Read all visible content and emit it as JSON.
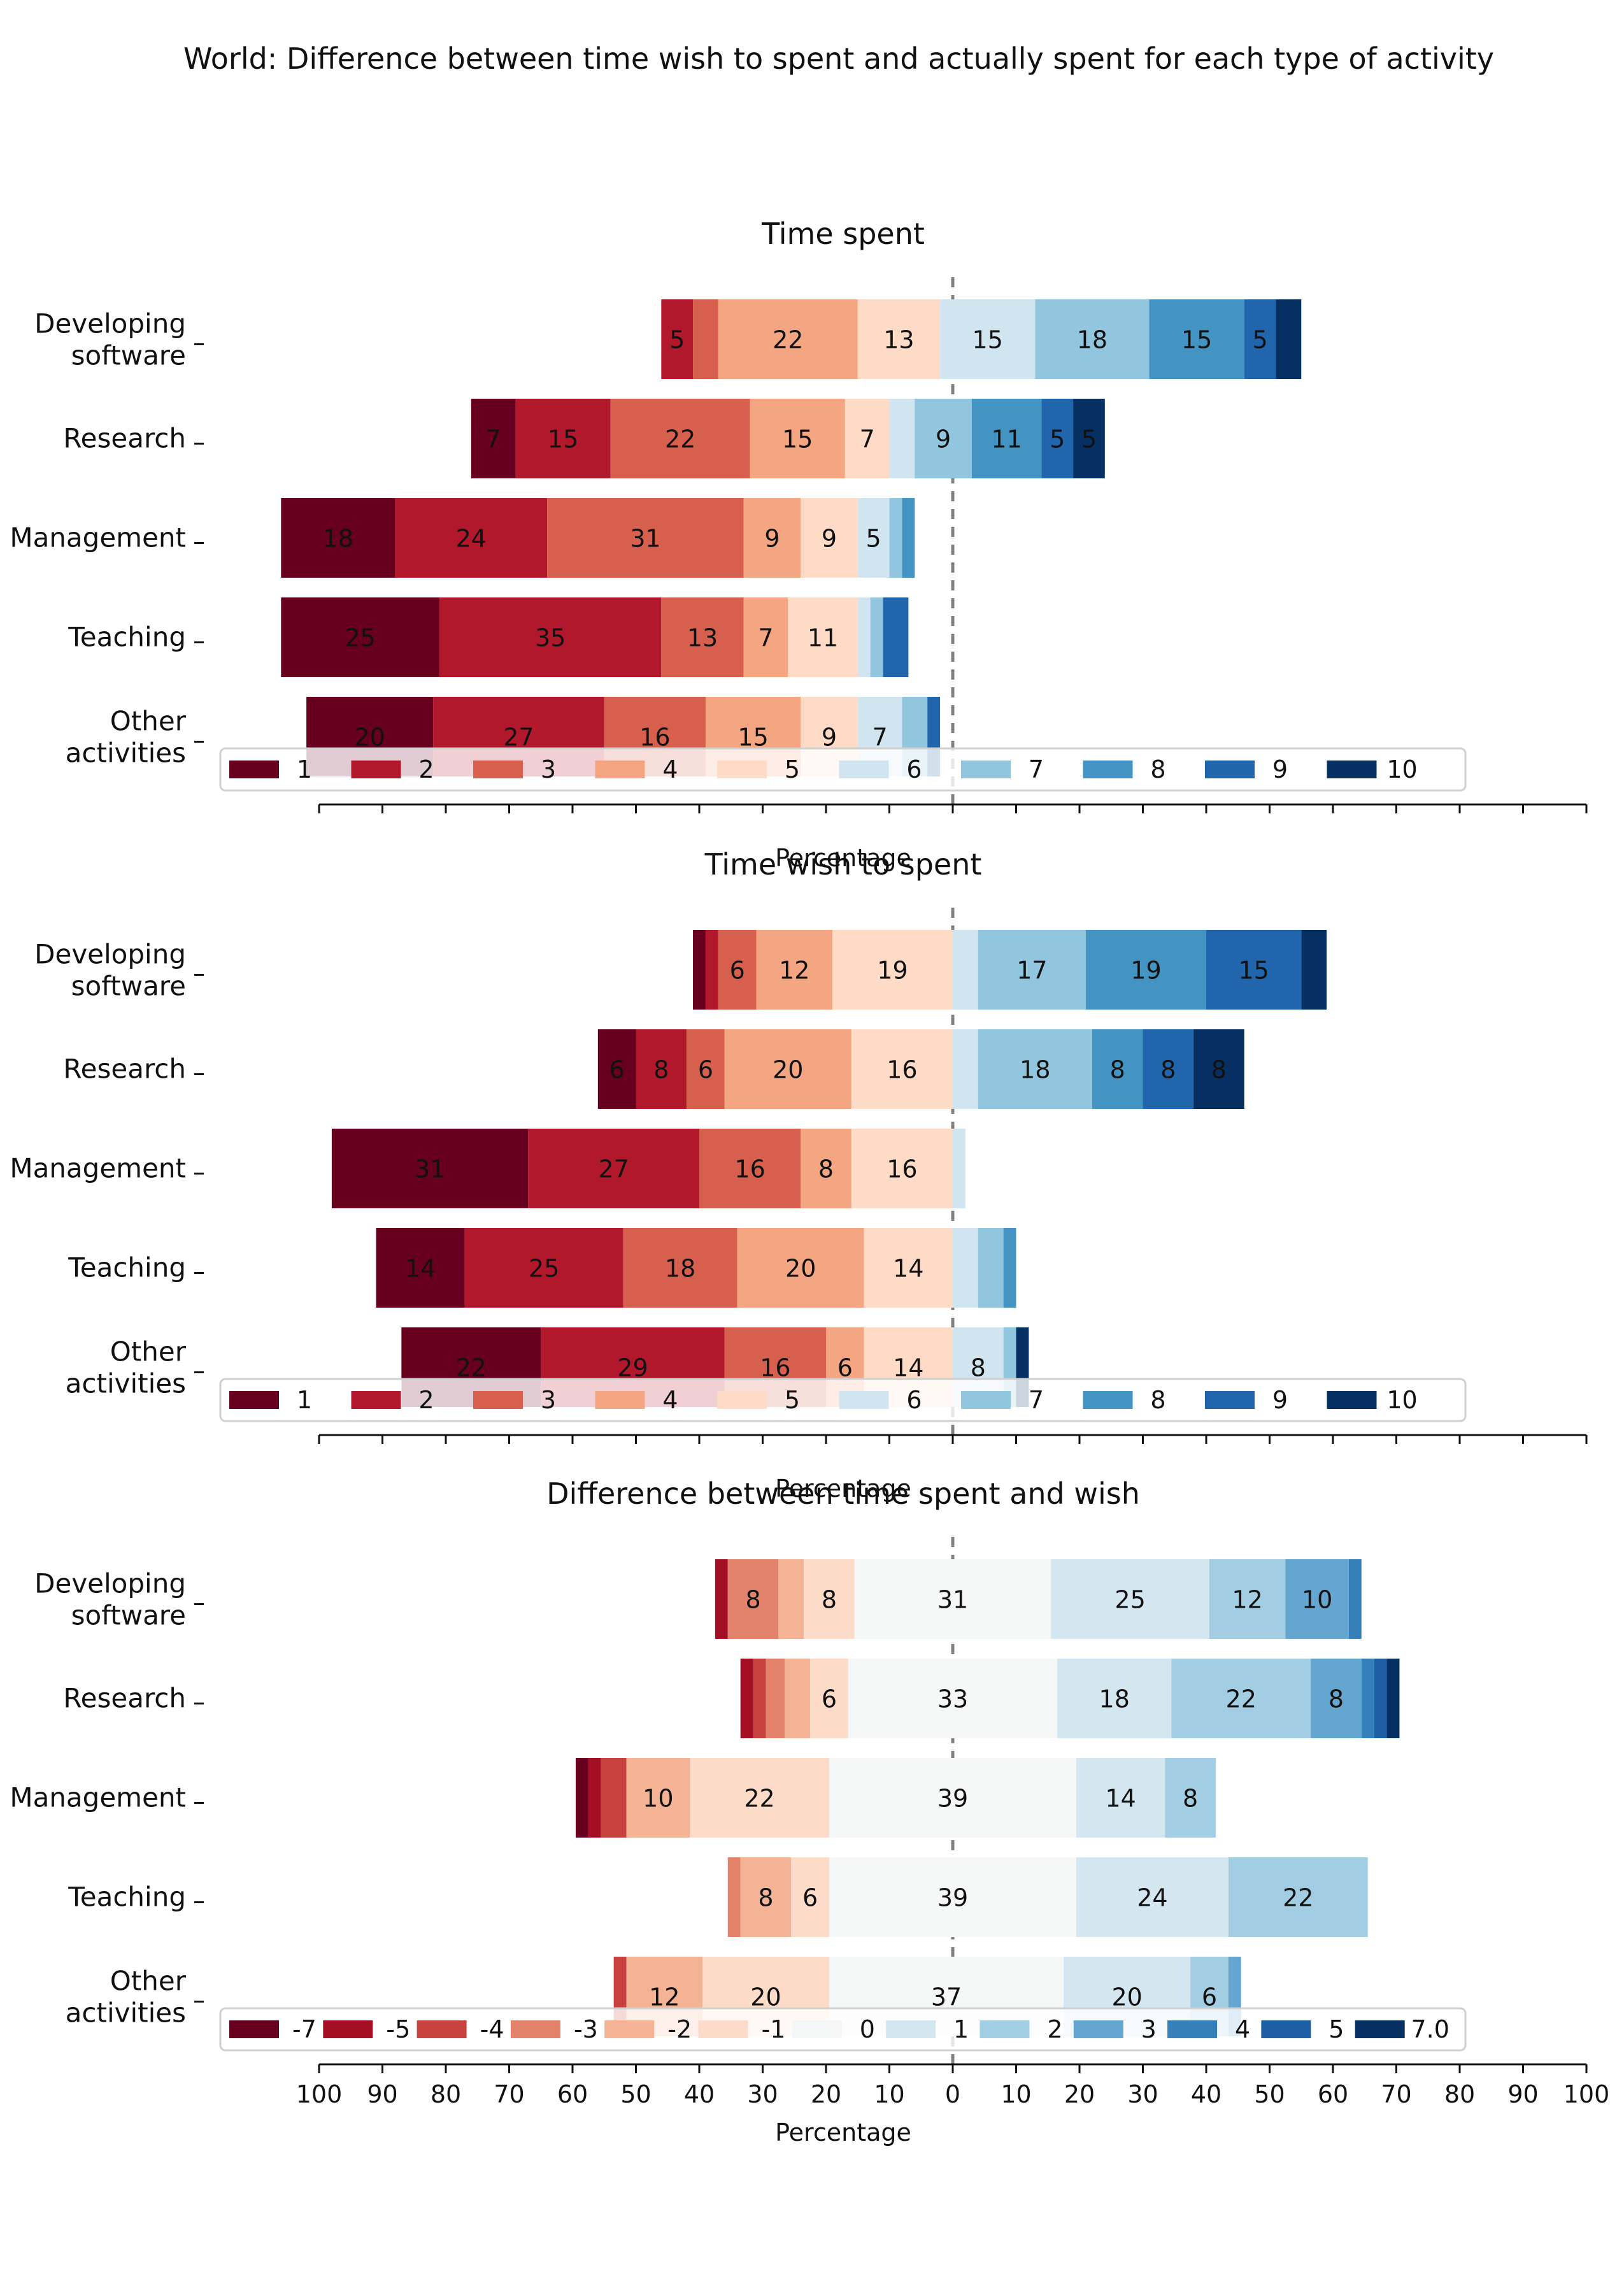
{
  "title": "World: Difference between time wish to spent and actually spent for each type of activity",
  "chart_data": [
    {
      "type": "bar",
      "orientation": "horizontal-diverging-stacked",
      "title": "Time spent",
      "xlabel": "Percentage",
      "categories": [
        "Developing software",
        "Research",
        "Management",
        "Teaching",
        "Other activities"
      ],
      "xlim": [
        -100,
        100
      ],
      "tick_labels_shown": false,
      "legend": [
        "1",
        "2",
        "3",
        "4",
        "5",
        "6",
        "7",
        "8",
        "9",
        "10"
      ],
      "legend_position": "bottom",
      "colors": [
        "#67001f",
        "#b2182b",
        "#d6604d",
        "#f4a582",
        "#fddbc7",
        "#d1e5f0",
        "#92c5de",
        "#4393c3",
        "#2166ac",
        "#053061"
      ],
      "series": [
        {
          "name": "1",
          "values": [
            0,
            7,
            18,
            25,
            20
          ]
        },
        {
          "name": "2",
          "values": [
            5,
            15,
            24,
            35,
            27
          ]
        },
        {
          "name": "3",
          "values": [
            4,
            22,
            31,
            13,
            16
          ]
        },
        {
          "name": "4",
          "values": [
            22,
            15,
            9,
            7,
            15
          ]
        },
        {
          "name": "5",
          "values": [
            13,
            7,
            9,
            11,
            9
          ]
        },
        {
          "name": "6",
          "values": [
            15,
            4,
            5,
            2,
            7
          ]
        },
        {
          "name": "7",
          "values": [
            18,
            9,
            2,
            2,
            4
          ]
        },
        {
          "name": "8",
          "values": [
            15,
            11,
            2,
            0,
            0
          ]
        },
        {
          "name": "9",
          "values": [
            5,
            5,
            0,
            4,
            2
          ]
        },
        {
          "name": "10",
          "values": [
            4,
            5,
            0,
            0,
            0
          ]
        }
      ],
      "negative_extent": [
        -46,
        -76,
        -106,
        -106,
        -102
      ],
      "hidden_values": [
        {
          "cat": 0,
          "series": 2
        },
        {
          "cat": 0,
          "series": 9
        },
        {
          "cat": 1,
          "series": 5
        },
        {
          "cat": 2,
          "series": 6
        },
        {
          "cat": 2,
          "series": 7
        },
        {
          "cat": 3,
          "series": 5
        },
        {
          "cat": 3,
          "series": 6
        },
        {
          "cat": 3,
          "series": 8
        },
        {
          "cat": 4,
          "series": 6
        },
        {
          "cat": 4,
          "series": 8
        }
      ]
    },
    {
      "type": "bar",
      "orientation": "horizontal-diverging-stacked",
      "title": "Time wish to spent",
      "xlabel": "Percentage",
      "categories": [
        "Developing software",
        "Research",
        "Management",
        "Teaching",
        "Other activities"
      ],
      "xlim": [
        -100,
        100
      ],
      "tick_labels_shown": false,
      "legend": [
        "1",
        "2",
        "3",
        "4",
        "5",
        "6",
        "7",
        "8",
        "9",
        "10"
      ],
      "legend_position": "bottom",
      "colors": [
        "#67001f",
        "#b2182b",
        "#d6604d",
        "#f4a582",
        "#fddbc7",
        "#d1e5f0",
        "#92c5de",
        "#4393c3",
        "#2166ac",
        "#053061"
      ],
      "series": [
        {
          "name": "1",
          "values": [
            2,
            6,
            31,
            14,
            22
          ]
        },
        {
          "name": "2",
          "values": [
            2,
            8,
            27,
            25,
            29
          ]
        },
        {
          "name": "3",
          "values": [
            6,
            6,
            16,
            18,
            16
          ]
        },
        {
          "name": "4",
          "values": [
            12,
            20,
            8,
            20,
            6
          ]
        },
        {
          "name": "5",
          "values": [
            19,
            16,
            16,
            14,
            14
          ]
        },
        {
          "name": "6",
          "values": [
            4,
            4,
            2,
            4,
            8
          ]
        },
        {
          "name": "7",
          "values": [
            17,
            18,
            0,
            4,
            2
          ]
        },
        {
          "name": "8",
          "values": [
            19,
            8,
            0,
            2,
            0
          ]
        },
        {
          "name": "9",
          "values": [
            15,
            8,
            0,
            0,
            0
          ]
        },
        {
          "name": "10",
          "values": [
            4,
            8,
            0,
            0,
            2
          ]
        }
      ],
      "negative_extent": [
        -41,
        -56,
        -98,
        -91,
        -87
      ],
      "hidden_values": [
        {
          "cat": 0,
          "series": 0
        },
        {
          "cat": 0,
          "series": 1
        },
        {
          "cat": 0,
          "series": 5
        },
        {
          "cat": 0,
          "series": 9
        },
        {
          "cat": 1,
          "series": 5
        },
        {
          "cat": 2,
          "series": 5
        },
        {
          "cat": 3,
          "series": 5
        },
        {
          "cat": 3,
          "series": 6
        },
        {
          "cat": 3,
          "series": 7
        },
        {
          "cat": 4,
          "series": 6
        },
        {
          "cat": 4,
          "series": 9
        }
      ]
    },
    {
      "type": "bar",
      "orientation": "horizontal-diverging-stacked",
      "title": "Difference between time spent and wish",
      "xlabel": "Percentage",
      "categories": [
        "Developing software",
        "Research",
        "Management",
        "Teaching",
        "Other activities"
      ],
      "xlim": [
        -100,
        100
      ],
      "xticks": [
        -100,
        -90,
        -80,
        -70,
        -60,
        -50,
        -40,
        -30,
        -20,
        -10,
        0,
        10,
        20,
        30,
        40,
        50,
        60,
        70,
        80,
        90,
        100
      ],
      "xtick_labels": [
        "100",
        "90",
        "80",
        "70",
        "60",
        "50",
        "40",
        "30",
        "20",
        "10",
        "0",
        "10",
        "20",
        "30",
        "40",
        "50",
        "60",
        "70",
        "80",
        "90",
        "100"
      ],
      "legend": [
        "-7",
        "-5",
        "-4",
        "-3",
        "-2",
        "-1",
        "0",
        "1",
        "2",
        "3",
        "4",
        "5",
        "7.0"
      ],
      "legend_position": "bottom",
      "colors": [
        "#67001f",
        "#a50f26",
        "#c7423f",
        "#e3826a",
        "#f4b394",
        "#fcdcc9",
        "#f5f6f6",
        "#d4e6f0",
        "#a3cde3",
        "#64a6cf",
        "#3680b9",
        "#1d5fa2",
        "#053061"
      ],
      "series": [
        {
          "name": "-7",
          "values": [
            0,
            0,
            2,
            0,
            0
          ]
        },
        {
          "name": "-5",
          "values": [
            2,
            2,
            2,
            0,
            0
          ]
        },
        {
          "name": "-4",
          "values": [
            0,
            2,
            4,
            0,
            2
          ]
        },
        {
          "name": "-3",
          "values": [
            8,
            3,
            0,
            2,
            0
          ]
        },
        {
          "name": "-2",
          "values": [
            4,
            4,
            10,
            8,
            12
          ]
        },
        {
          "name": "-1",
          "values": [
            8,
            6,
            22,
            6,
            20
          ]
        },
        {
          "name": "0",
          "values": [
            31,
            33,
            39,
            39,
            37
          ]
        },
        {
          "name": "1",
          "values": [
            25,
            18,
            14,
            24,
            20
          ]
        },
        {
          "name": "2",
          "values": [
            12,
            22,
            8,
            22,
            6
          ]
        },
        {
          "name": "3",
          "values": [
            10,
            8,
            0,
            0,
            2
          ]
        },
        {
          "name": "4",
          "values": [
            2,
            2,
            0,
            0,
            0
          ]
        },
        {
          "name": "5",
          "values": [
            0,
            2,
            0,
            0,
            0
          ]
        },
        {
          "name": "7.0",
          "values": [
            0,
            2,
            0,
            0,
            0
          ]
        }
      ],
      "negative_extent": [
        -37.5,
        -33.5,
        -59.5,
        -35.5,
        -53.5
      ],
      "hidden_values": [
        {
          "cat": 0,
          "series": 1
        },
        {
          "cat": 0,
          "series": 4
        },
        {
          "cat": 0,
          "series": 10
        },
        {
          "cat": 1,
          "series": 1
        },
        {
          "cat": 1,
          "series": 2
        },
        {
          "cat": 1,
          "series": 3
        },
        {
          "cat": 1,
          "series": 4
        },
        {
          "cat": 1,
          "series": 10
        },
        {
          "cat": 1,
          "series": 11
        },
        {
          "cat": 1,
          "series": 12
        },
        {
          "cat": 2,
          "series": 0
        },
        {
          "cat": 2,
          "series": 1
        },
        {
          "cat": 2,
          "series": 2
        },
        {
          "cat": 3,
          "series": 3
        },
        {
          "cat": 4,
          "series": 2
        },
        {
          "cat": 4,
          "series": 9
        }
      ]
    }
  ]
}
